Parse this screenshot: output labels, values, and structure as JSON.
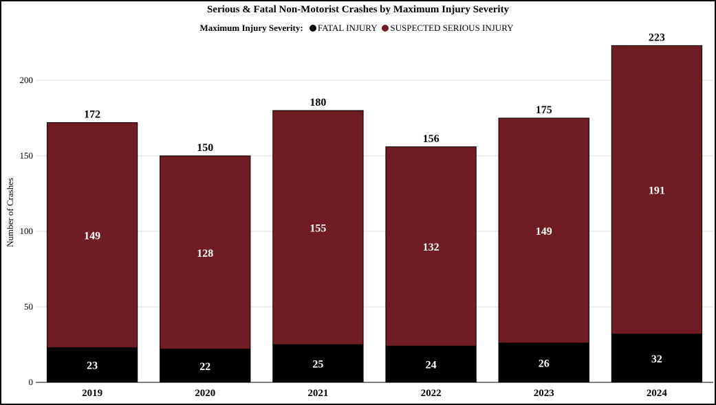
{
  "chart_data": {
    "type": "bar",
    "stacked": true,
    "title": "Serious & Fatal Non-Motorist Crashes by Maximum Injury Severity",
    "legend_title": "Maximum Injury Severity:",
    "legend_placement": "top",
    "ylabel": "Number of Crashes",
    "xlabel": "",
    "ylim": [
      0,
      225
    ],
    "yticks": [
      0,
      50,
      100,
      150,
      200
    ],
    "grid": true,
    "categories": [
      "2019",
      "2020",
      "2021",
      "2022",
      "2023",
      "2024"
    ],
    "series": [
      {
        "name": "FATAL INJURY",
        "color": "#000000",
        "values": [
          23,
          22,
          25,
          24,
          26,
          32
        ]
      },
      {
        "name": "SUSPECTED SERIOUS INJURY",
        "color": "#6f1d22",
        "values": [
          149,
          128,
          155,
          132,
          149,
          191
        ]
      }
    ],
    "totals": [
      172,
      150,
      180,
      156,
      175,
      223
    ]
  }
}
